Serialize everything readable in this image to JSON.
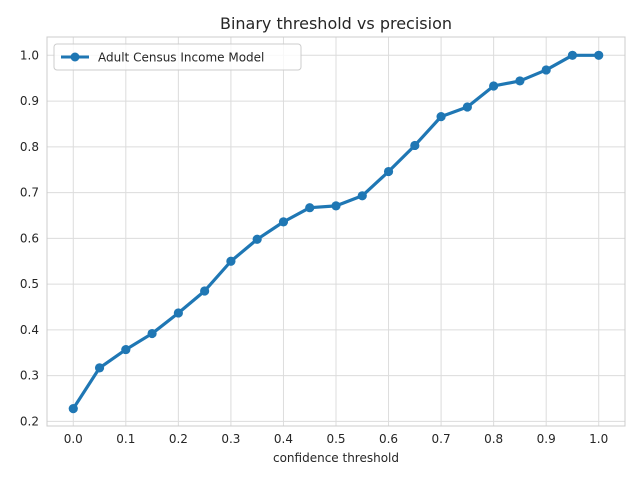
{
  "chart_data": {
    "type": "line",
    "title": "Binary threshold vs precision",
    "xlabel": "confidence threshold",
    "ylabel": "",
    "xlim": [
      -0.05,
      1.05
    ],
    "ylim": [
      0.19,
      1.04
    ],
    "xticks": [
      "0.0",
      "0.1",
      "0.2",
      "0.3",
      "0.4",
      "0.5",
      "0.6",
      "0.7",
      "0.8",
      "0.9",
      "1.0"
    ],
    "yticks": [
      "0.2",
      "0.3",
      "0.4",
      "0.5",
      "0.6",
      "0.7",
      "0.8",
      "0.9",
      "1.0"
    ],
    "grid": true,
    "legend_position": "top-left",
    "series": [
      {
        "name": "Adult Census Income Model",
        "color": "#1f77b4",
        "x": [
          0.0,
          0.05,
          0.1,
          0.15,
          0.2,
          0.25,
          0.3,
          0.35,
          0.4,
          0.45,
          0.5,
          0.55,
          0.6,
          0.65,
          0.7,
          0.75,
          0.8,
          0.85,
          0.9,
          0.95,
          1.0
        ],
        "y": [
          0.228,
          0.317,
          0.357,
          0.392,
          0.437,
          0.485,
          0.55,
          0.598,
          0.636,
          0.667,
          0.671,
          0.693,
          0.746,
          0.803,
          0.866,
          0.887,
          0.933,
          0.944,
          0.968,
          1.0,
          1.0
        ]
      }
    ]
  }
}
